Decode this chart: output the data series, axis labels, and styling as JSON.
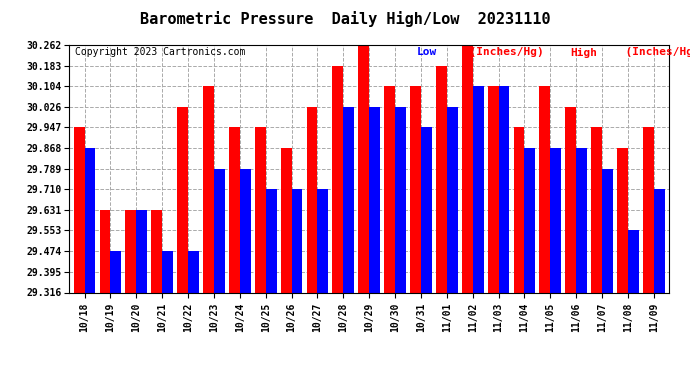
{
  "title": "Barometric Pressure  Daily High/Low  20231110",
  "copyright": "Copyright 2023 Cartronics.com",
  "categories": [
    "10/18",
    "10/19",
    "10/20",
    "10/21",
    "10/22",
    "10/23",
    "10/24",
    "10/25",
    "10/26",
    "10/27",
    "10/28",
    "10/29",
    "10/30",
    "10/31",
    "11/01",
    "11/02",
    "11/03",
    "11/04",
    "11/05",
    "11/06",
    "11/07",
    "11/08",
    "11/09"
  ],
  "high_values": [
    29.947,
    29.631,
    29.631,
    29.631,
    30.026,
    30.104,
    29.947,
    29.947,
    29.868,
    30.026,
    30.183,
    30.262,
    30.104,
    30.104,
    30.183,
    30.262,
    30.104,
    29.947,
    30.104,
    30.026,
    29.947,
    29.868,
    29.947
  ],
  "low_values": [
    29.868,
    29.474,
    29.631,
    29.474,
    29.474,
    29.789,
    29.789,
    29.71,
    29.71,
    29.71,
    30.026,
    30.026,
    30.026,
    29.947,
    30.026,
    30.104,
    30.104,
    29.868,
    29.868,
    29.868,
    29.789,
    29.553,
    29.71
  ],
  "high_color": "#ff0000",
  "low_color": "#0000ff",
  "background_color": "#ffffff",
  "ylim_min": 29.316,
  "ylim_max": 30.262,
  "yticks": [
    29.316,
    29.395,
    29.474,
    29.553,
    29.631,
    29.71,
    29.789,
    29.868,
    29.947,
    30.026,
    30.104,
    30.183,
    30.262
  ],
  "title_fontsize": 11,
  "copyright_fontsize": 7,
  "legend_fontsize": 8,
  "tick_fontsize": 7,
  "bar_width": 0.42
}
